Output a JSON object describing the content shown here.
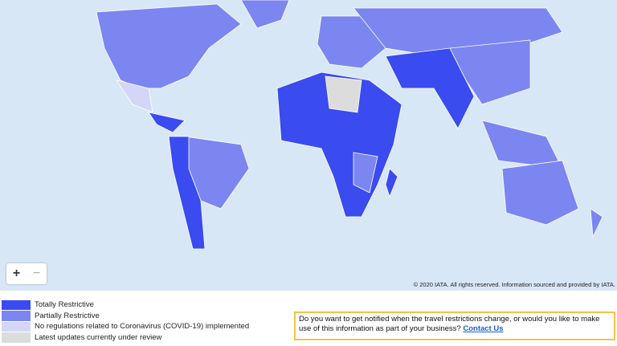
{
  "map": {
    "copyright": "© 2020 IATA. All rights reserved. Information sourced and provided by IATA.",
    "zoom_in": "+",
    "zoom_out": "−"
  },
  "legend": [
    {
      "label": "Totally Restrictive",
      "color": "#3a4bef"
    },
    {
      "label": "Partially Restrictive",
      "color": "#7c86f0"
    },
    {
      "label": "No regulations related to Coronavirus (COVID-19) implemented",
      "color": "#d3d6f7"
    },
    {
      "label": "Latest updates currently under review",
      "color": "#dcdcdc"
    }
  ],
  "notice": {
    "text": "Do you want to get notified when the travel restrictions change, or would you like to make use of this information as part of your business?",
    "link": "Contact Us"
  }
}
